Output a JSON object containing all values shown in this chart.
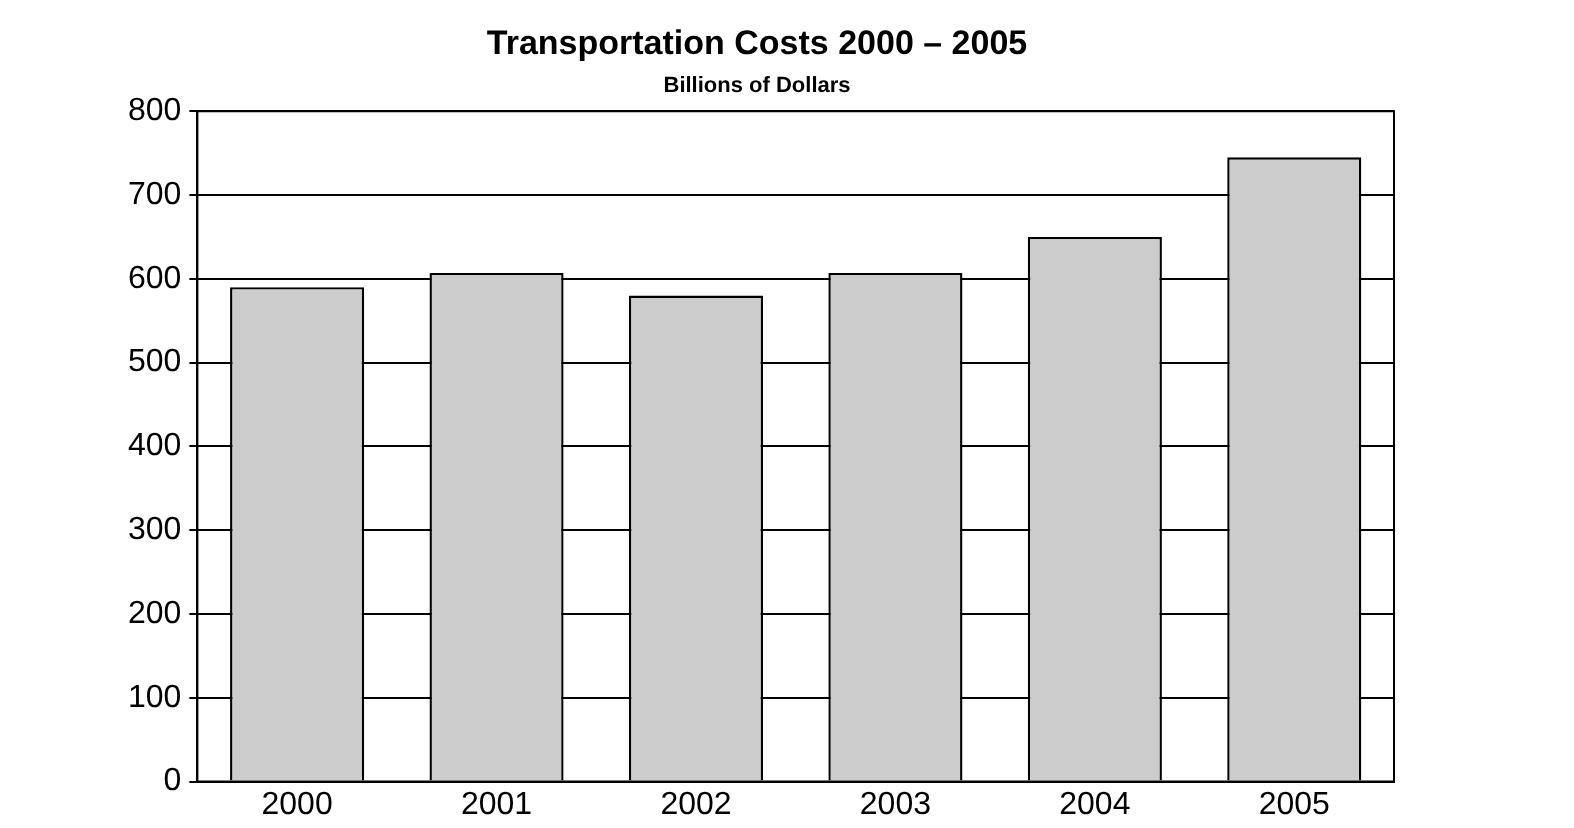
{
  "chart_data": {
    "type": "bar",
    "title": "Transportation Costs 2000 – 2005",
    "subtitle": "Billions of Dollars",
    "categories": [
      "2000",
      "2001",
      "2002",
      "2003",
      "2004",
      "2005"
    ],
    "values": [
      590,
      607,
      580,
      607,
      650,
      745
    ],
    "color": "#cccccc",
    "ylim": [
      0,
      800
    ],
    "yticks": [
      0,
      100,
      200,
      300,
      400,
      500,
      600,
      700,
      800
    ],
    "grid": "y"
  }
}
